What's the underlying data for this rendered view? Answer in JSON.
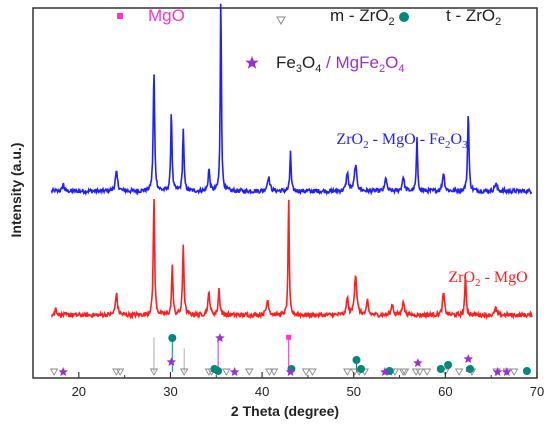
{
  "chart_data": {
    "type": "line",
    "xlabel": "2 Theta (degree)",
    "ylabel": "Intensity (a.u.)",
    "xlim": [
      15,
      70
    ],
    "xticks": [
      "20",
      "30",
      "40",
      "50",
      "60",
      "70"
    ],
    "series": [
      {
        "name": "ZrO2 - MgO - Fe2O3",
        "color": "#1f1fff",
        "baseline": 0.505,
        "peaks": [
          [
            18.3,
            0.02,
            0.2
          ],
          [
            24.1,
            0.05,
            0.3
          ],
          [
            28.2,
            0.33,
            0.18
          ],
          [
            30.1,
            0.22,
            0.16
          ],
          [
            31.4,
            0.17,
            0.17
          ],
          [
            34.2,
            0.06,
            0.2
          ],
          [
            35.5,
            0.55,
            0.14
          ],
          [
            40.7,
            0.04,
            0.3
          ],
          [
            43.1,
            0.11,
            0.15
          ],
          [
            49.3,
            0.05,
            0.25
          ],
          [
            50.2,
            0.07,
            0.3
          ],
          [
            53.5,
            0.04,
            0.2
          ],
          [
            55.4,
            0.04,
            0.25
          ],
          [
            56.9,
            0.14,
            0.16
          ],
          [
            59.8,
            0.05,
            0.25
          ],
          [
            62.5,
            0.22,
            0.17
          ],
          [
            65.5,
            0.02,
            0.3
          ]
        ]
      },
      {
        "name": "ZrO2 - MgO",
        "color": "#ff1f1f",
        "baseline": 0.17,
        "peaks": [
          [
            17.5,
            0.02,
            0.2
          ],
          [
            24.1,
            0.06,
            0.25
          ],
          [
            28.2,
            0.33,
            0.17
          ],
          [
            30.2,
            0.14,
            0.16
          ],
          [
            31.4,
            0.19,
            0.18
          ],
          [
            34.2,
            0.06,
            0.25
          ],
          [
            35.3,
            0.07,
            0.2
          ],
          [
            40.6,
            0.04,
            0.3
          ],
          [
            42.9,
            0.33,
            0.14
          ],
          [
            49.3,
            0.05,
            0.2
          ],
          [
            50.2,
            0.11,
            0.3
          ],
          [
            51.5,
            0.04,
            0.2
          ],
          [
            54.2,
            0.03,
            0.25
          ],
          [
            55.4,
            0.04,
            0.25
          ],
          [
            59.8,
            0.06,
            0.25
          ],
          [
            62.2,
            0.11,
            0.17
          ],
          [
            65.5,
            0.02,
            0.2
          ]
        ]
      }
    ],
    "reference_sticks": [
      {
        "x": 28.2,
        "h": 0.11,
        "color": "#aaaaaa"
      },
      {
        "x": 31.5,
        "h": 0.08,
        "color": "#aaaaaa"
      },
      {
        "x": 30.2,
        "h": 0.11,
        "color": "#00897b"
      },
      {
        "x": 35.2,
        "h": 0.11,
        "color": "#b040d0"
      },
      {
        "x": 42.9,
        "h": 0.11,
        "color": "#ff33cc"
      },
      {
        "x": 50.3,
        "h": 0.04,
        "color": "#00897b"
      },
      {
        "x": 62.3,
        "h": 0.03,
        "color": "#b040d0"
      }
    ],
    "markers": {
      "MgO": [
        42.9
      ],
      "m-ZrO2": [
        17.3,
        24.1,
        24.5,
        28.2,
        31.5,
        34.2,
        34.5,
        36.1,
        38.6,
        40.8,
        41.3,
        44.8,
        45.5,
        49.3,
        50.1,
        50.6,
        51.2,
        54.1,
        54.5,
        55.4,
        55.6,
        56.8,
        57.2,
        58.0,
        60.0,
        61.5,
        62.9,
        65.6,
        66.7,
        67.5
      ],
      "t-ZrO2": [
        30.2,
        34.8,
        35.2,
        43.2,
        50.3,
        50.8,
        53.9,
        59.5,
        60.3,
        62.7,
        68.9
      ],
      "Fe3O4 / MgFe2O4": [
        18.3,
        30.1,
        35.4,
        37.0,
        43.1,
        53.4,
        57.0,
        62.5,
        65.7,
        66.7
      ]
    },
    "legend": [
      {
        "label": "MgO",
        "color": "#ff33cc",
        "symbol": "square"
      },
      {
        "label": "m - ZrO2",
        "color": "#888888",
        "symbol": "triangle-down-open"
      },
      {
        "label": "t - ZrO2",
        "color": "#00897b",
        "symbol": "circle"
      },
      {
        "label": "Fe3O4 / MgFe2O4",
        "color": "#9b30d0",
        "symbol": "star"
      }
    ],
    "grid": false
  }
}
